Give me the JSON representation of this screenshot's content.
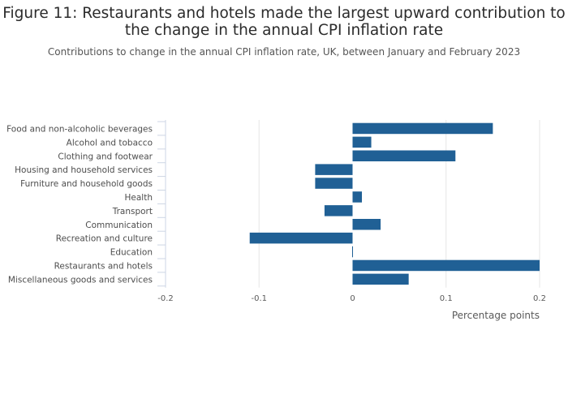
{
  "title": "Figure 11: Restaurants and hotels made the largest upward contribution to the change in the annual CPI inflation rate",
  "subtitle": "Contributions to change in the annual CPI inflation rate, UK, between January and February 2023",
  "colors": {
    "bar": "#206095",
    "grid": "#e6e6e6",
    "axis_text": "#595959",
    "label_text": "#4d4d4d"
  },
  "chart_data": {
    "type": "bar",
    "orientation": "horizontal",
    "categories": [
      "Food and non-alcoholic beverages",
      "Alcohol and tobacco",
      "Clothing and footwear",
      "Housing and household services",
      "Furniture and household goods",
      "Health",
      "Transport",
      "Communication",
      "Recreation and culture",
      "Education",
      "Restaurants and hotels",
      "Miscellaneous goods and services"
    ],
    "values": [
      0.15,
      0.02,
      0.11,
      -0.04,
      -0.04,
      0.01,
      -0.03,
      0.03,
      -0.11,
      0.0,
      0.2,
      0.06
    ],
    "xlim": [
      -0.2,
      0.2
    ],
    "xticks": [
      -0.2,
      -0.1,
      0,
      0.1,
      0.2
    ],
    "xtick_labels": [
      "-0.2",
      "-0.1",
      "0",
      "0.1",
      "0.2"
    ],
    "xlabel": "Percentage points",
    "ylabel": "",
    "grid": true
  }
}
